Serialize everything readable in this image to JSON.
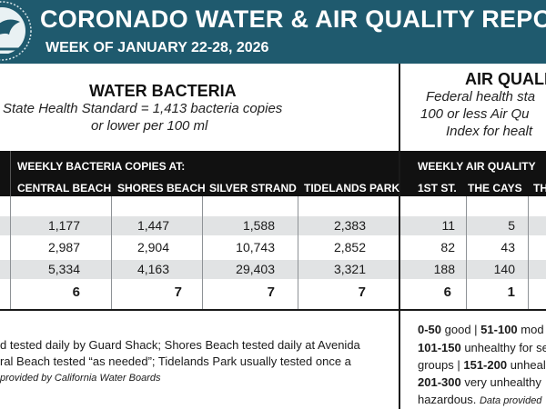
{
  "header": {
    "title": "CORONADO WATER & AIR QUALITY REPO",
    "subtitle": "WEEK OF JANUARY 22-28, 2026"
  },
  "water": {
    "title": "WATER BACTERIA",
    "standard_line1": "State Health Standard  = 1,413 bacteria copies",
    "standard_line2": "or lower per 100 ml",
    "band_label": "WEEKLY BACTERIA COPIES AT:",
    "columns": [
      "CENTRAL BEACH",
      "SHORES BEACH",
      "SILVER STRAND",
      "TIDELANDS PARK"
    ],
    "rows": [
      [
        "1,177",
        "1,447",
        "1,588",
        "2,383"
      ],
      [
        "2,987",
        "2,904",
        "10,743",
        "2,852"
      ],
      [
        "5,334",
        "4,163",
        "29,403",
        "3,321"
      ]
    ],
    "totals": [
      "6",
      "7",
      "7",
      "7"
    ],
    "note_line1": "d tested daily by Guard Shack; Shores Beach tested daily at Avenida",
    "note_line2": "ral Beach tested “as needed”; Tidelands Park usually tested once a",
    "note_source": "provided by California Water Boards"
  },
  "air": {
    "title": "AIR QUALIT",
    "standard_line1": "Federal health sta",
    "standard_line2": "100 or less Air Qu",
    "standard_line3": "Index for healt",
    "band_label": "WEEKLY AIR QUALITY",
    "columns": [
      "1ST ST.",
      "THE CAYS",
      "TH"
    ],
    "rows": [
      [
        "11",
        "5"
      ],
      [
        "82",
        "43"
      ],
      [
        "188",
        "140"
      ]
    ],
    "totals": [
      "6",
      "1"
    ],
    "legend": {
      "l1_range1": "0-50",
      "l1_text1": " good | ",
      "l1_range2": "51-100",
      "l1_text2": " mod",
      "l2_range": "101-150",
      "l2_text": " unhealthy for se",
      "l3_text1": "groups | ",
      "l3_range": "151-200",
      "l3_text2": " unheal",
      "l4_range": "201-300",
      "l4_text": " very unhealthy",
      "l5_text": "hazardous. ",
      "l5_source": "Data provided"
    }
  },
  "colors": {
    "header_bg": "#1f5a6e",
    "band_bg": "#111111",
    "row_shade": "#e1e3e4"
  }
}
